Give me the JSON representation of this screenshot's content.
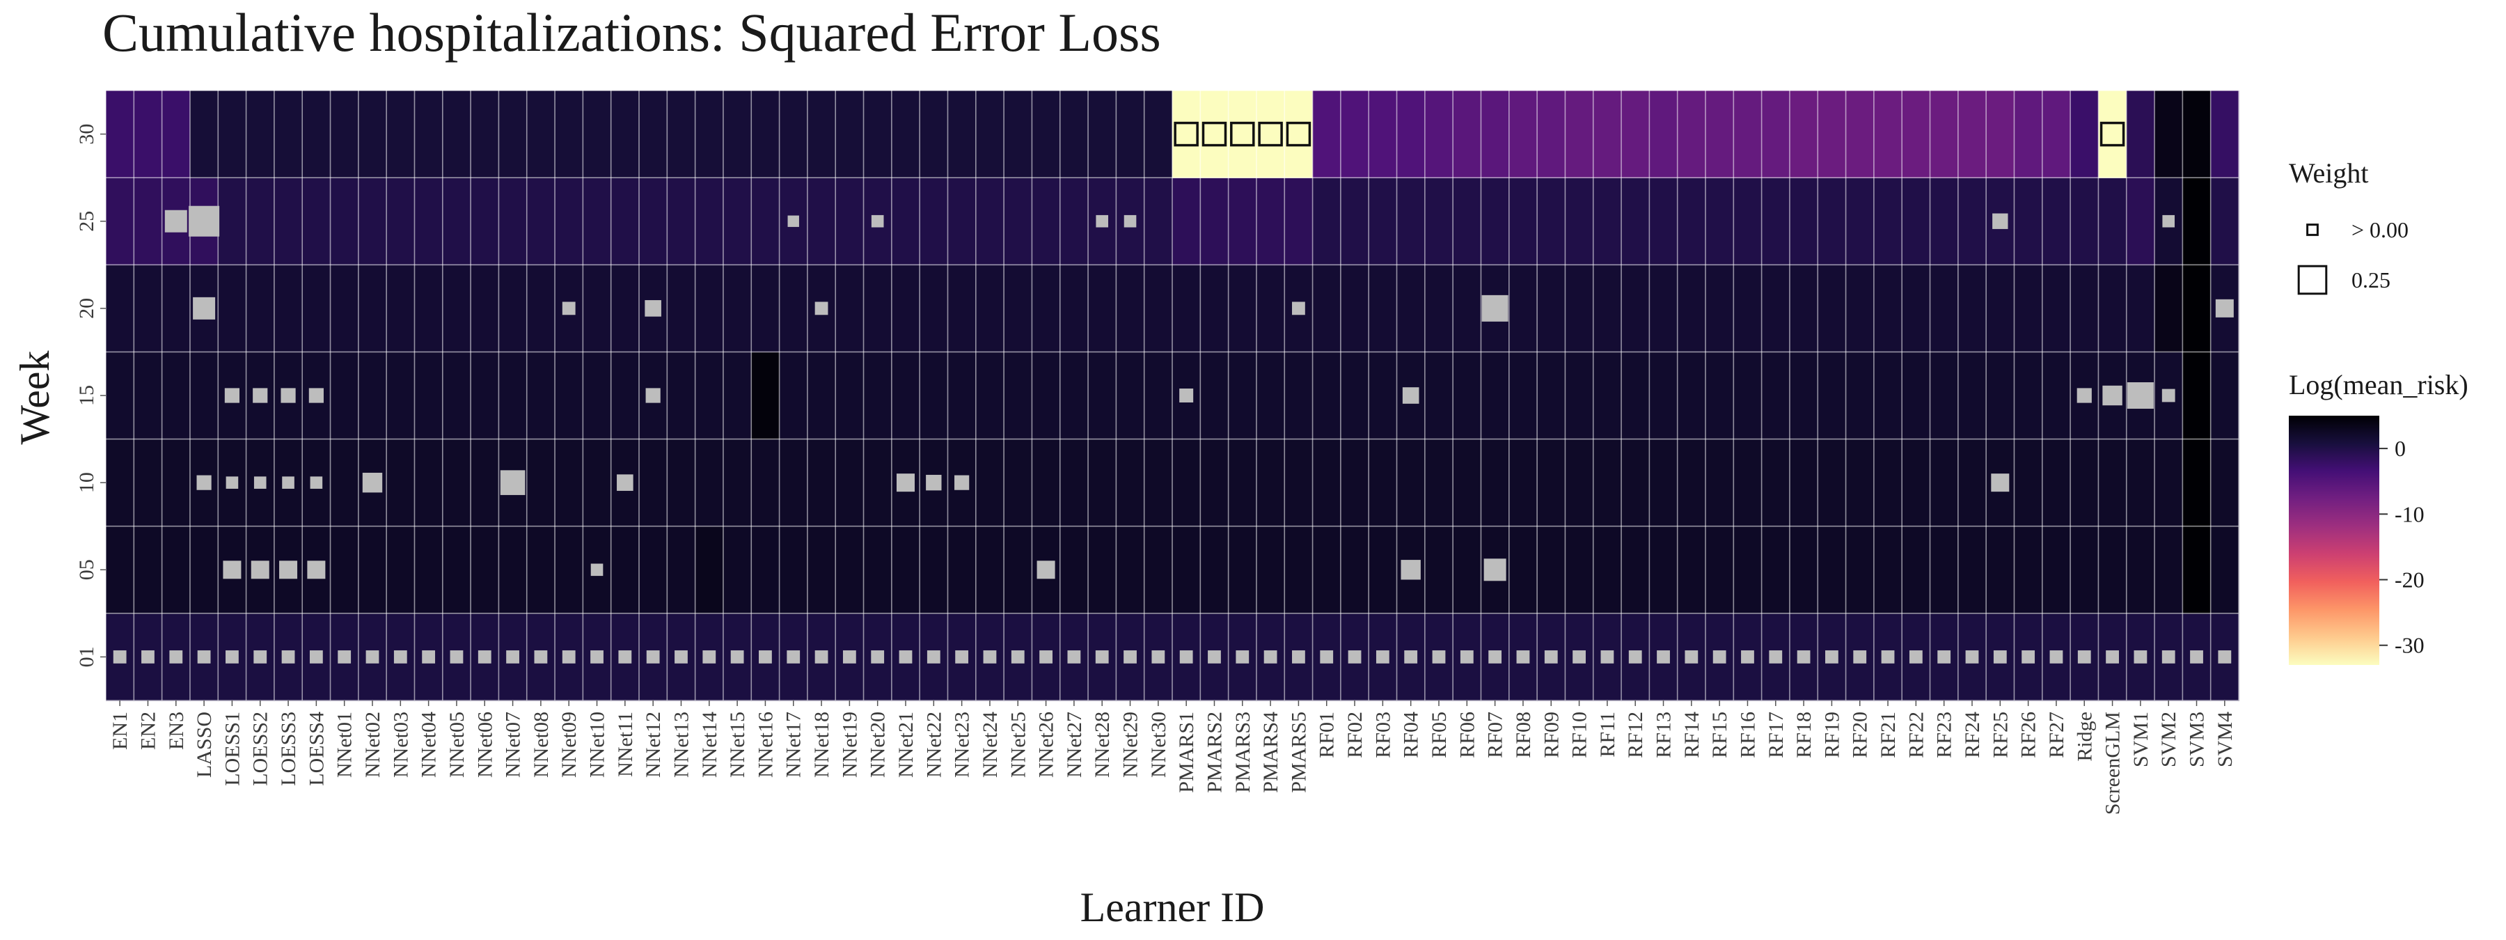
{
  "chart_data": {
    "type": "heatmap",
    "title": "Cumulative hospitalizations: Squared Error Loss",
    "xlabel": "Learner ID",
    "ylabel": "Week",
    "weeks": [
      "01",
      "05",
      "10",
      "15",
      "20",
      "25",
      "30"
    ],
    "learners": [
      "EN1",
      "EN2",
      "EN3",
      "LASSO",
      "LOESS1",
      "LOESS2",
      "LOESS3",
      "LOESS4",
      "NNet01",
      "NNet02",
      "NNet03",
      "NNet04",
      "NNet05",
      "NNet06",
      "NNet07",
      "NNet08",
      "NNet09",
      "NNet10",
      "NNet11",
      "NNet12",
      "NNet13",
      "NNet14",
      "NNet15",
      "NNet16",
      "NNet17",
      "NNet18",
      "NNet19",
      "NNet20",
      "NNet21",
      "NNet22",
      "NNet23",
      "NNet24",
      "NNet25",
      "NNet26",
      "NNet27",
      "NNet28",
      "NNet29",
      "NNet30",
      "PMARS1",
      "PMARS2",
      "PMARS3",
      "PMARS4",
      "PMARS5",
      "RF01",
      "RF02",
      "RF03",
      "RF04",
      "RF05",
      "RF06",
      "RF07",
      "RF08",
      "RF09",
      "RF10",
      "RF11",
      "RF12",
      "RF13",
      "RF14",
      "RF15",
      "RF16",
      "RF17",
      "RF18",
      "RF19",
      "RF20",
      "RF21",
      "RF22",
      "RF23",
      "RF24",
      "RF25",
      "RF26",
      "RF27",
      "Ridge",
      "ScreenGLM",
      "SVM1",
      "SVM2",
      "SVM3",
      "SVM4"
    ],
    "fill_legend": {
      "title": "Log(mean_risk)",
      "ticks": [
        0,
        -10,
        -20,
        -30
      ],
      "range": [
        -33,
        5
      ],
      "colors": [
        "#fcfdbf",
        "#feca8d",
        "#fd9668",
        "#f1605d",
        "#cd4071",
        "#9e2f7f",
        "#721f81",
        "#440f76",
        "#180f3d",
        "#000004"
      ]
    },
    "size_legend": {
      "title": "Weight",
      "labels": [
        "> 0.00",
        "0.25"
      ],
      "values": [
        0.02,
        0.25
      ]
    },
    "mean_risk_log": {
      "default_by_week": {
        "01": 0.5,
        "05": 2.5,
        "10": 2.3,
        "15": 2.0,
        "20": 1.5,
        "25": 0.0,
        "30": 1.2
      },
      "overrides": [
        {
          "learner": "EN1",
          "week": "30",
          "value": -2.5
        },
        {
          "learner": "EN2",
          "week": "30",
          "value": -2.5
        },
        {
          "learner": "EN3",
          "week": "30",
          "value": -2.5
        },
        {
          "learner": "EN1",
          "week": "25",
          "value": -1.5
        },
        {
          "learner": "EN2",
          "week": "25",
          "value": -1.5
        },
        {
          "learner": "EN3",
          "week": "25",
          "value": -1.5
        },
        {
          "learner": "LASSO",
          "week": "25",
          "value": -1.5
        },
        {
          "learner": "NNet16",
          "week": "15",
          "value": 4.5
        },
        {
          "learner": "NNet14",
          "week": "05",
          "value": 3.2
        },
        {
          "learner": "PMARS1",
          "week": "30",
          "value": -33
        },
        {
          "learner": "PMARS2",
          "week": "30",
          "value": -33
        },
        {
          "learner": "PMARS3",
          "week": "30",
          "value": -33
        },
        {
          "learner": "PMARS4",
          "week": "30",
          "value": -33
        },
        {
          "learner": "PMARS5",
          "week": "30",
          "value": -33
        },
        {
          "learner": "PMARS1",
          "week": "25",
          "value": -1.2
        },
        {
          "learner": "PMARS2",
          "week": "25",
          "value": -1.2
        },
        {
          "learner": "PMARS3",
          "week": "25",
          "value": -1.2
        },
        {
          "learner": "PMARS4",
          "week": "25",
          "value": -1.2
        },
        {
          "learner": "PMARS5",
          "week": "25",
          "value": -1.2
        },
        {
          "learner": "RF01",
          "week": "30",
          "value": -4.5
        },
        {
          "learner": "RF02",
          "week": "30",
          "value": -4.5
        },
        {
          "learner": "RF03",
          "week": "30",
          "value": -4.5
        },
        {
          "learner": "RF04",
          "week": "30",
          "value": -4.5
        },
        {
          "learner": "RF05",
          "week": "30",
          "value": -5.0
        },
        {
          "learner": "RF06",
          "week": "30",
          "value": -5.5
        },
        {
          "learner": "RF07",
          "week": "30",
          "value": -5.5
        },
        {
          "learner": "RF08",
          "week": "30",
          "value": -6.0
        },
        {
          "learner": "RF09",
          "week": "30",
          "value": -6.0
        },
        {
          "learner": "RF10",
          "week": "30",
          "value": -6.5
        },
        {
          "learner": "RF11",
          "week": "30",
          "value": -6.5
        },
        {
          "learner": "RF12",
          "week": "30",
          "value": -6.5
        },
        {
          "learner": "RF13",
          "week": "30",
          "value": -6.0
        },
        {
          "learner": "RF14",
          "week": "30",
          "value": -6.5
        },
        {
          "learner": "RF15",
          "week": "30",
          "value": -6.5
        },
        {
          "learner": "RF16",
          "week": "30",
          "value": -6.5
        },
        {
          "learner": "RF17",
          "week": "30",
          "value": -6.5
        },
        {
          "learner": "RF18",
          "week": "30",
          "value": -7.0
        },
        {
          "learner": "RF19",
          "week": "30",
          "value": -7.0
        },
        {
          "learner": "RF20",
          "week": "30",
          "value": -7.0
        },
        {
          "learner": "RF21",
          "week": "30",
          "value": -7.0
        },
        {
          "learner": "RF22",
          "week": "30",
          "value": -7.0
        },
        {
          "learner": "RF23",
          "week": "30",
          "value": -7.0
        },
        {
          "learner": "RF24",
          "week": "30",
          "value": -7.0
        },
        {
          "learner": "RF25",
          "week": "30",
          "value": -7.0
        },
        {
          "learner": "RF26",
          "week": "30",
          "value": -6.0
        },
        {
          "learner": "RF27",
          "week": "30",
          "value": -6.0
        },
        {
          "learner": "Ridge",
          "week": "30",
          "value": -2.5
        },
        {
          "learner": "ScreenGLM",
          "week": "30",
          "value": -33
        },
        {
          "learner": "SVM1",
          "week": "30",
          "value": -1.0
        },
        {
          "learner": "SVM2",
          "week": "30",
          "value": 3.5
        },
        {
          "learner": "SVM3",
          "week": "30",
          "value": 4.5
        },
        {
          "learner": "SVM4",
          "week": "30",
          "value": -2.0
        },
        {
          "learner": "SVM1",
          "week": "25",
          "value": -1.0
        },
        {
          "learner": "SVM2",
          "week": "25",
          "value": 1.5
        },
        {
          "learner": "SVM3",
          "week": "25",
          "value": 5.0
        },
        {
          "learner": "SVM3",
          "week": "20",
          "value": 5.0
        },
        {
          "learner": "SVM3",
          "week": "15",
          "value": 5.0
        },
        {
          "learner": "SVM3",
          "week": "10",
          "value": 5.0
        },
        {
          "learner": "SVM3",
          "week": "05",
          "value": 5.0
        },
        {
          "learner": "SVM2",
          "week": "20",
          "value": 3.5
        }
      ]
    },
    "weights": [
      {
        "learner": "EN3",
        "week": "25",
        "value": 0.15
      },
      {
        "learner": "LASSO",
        "week": "25",
        "value": 0.25
      },
      {
        "learner": "NNet17",
        "week": "25",
        "value": 0.02
      },
      {
        "learner": "NNet20",
        "week": "25",
        "value": 0.03
      },
      {
        "learner": "NNet28",
        "week": "25",
        "value": 0.03
      },
      {
        "learner": "NNet29",
        "week": "25",
        "value": 0.03
      },
      {
        "learner": "RF25",
        "week": "25",
        "value": 0.07
      },
      {
        "learner": "SVM2",
        "week": "25",
        "value": 0.03
      },
      {
        "learner": "LASSO",
        "week": "20",
        "value": 0.15
      },
      {
        "learner": "NNet09",
        "week": "20",
        "value": 0.04
      },
      {
        "learner": "NNet12",
        "week": "20",
        "value": 0.08
      },
      {
        "learner": "NNet18",
        "week": "20",
        "value": 0.04
      },
      {
        "learner": "PMARS5",
        "week": "20",
        "value": 0.04
      },
      {
        "learner": "RF07",
        "week": "20",
        "value": 0.2
      },
      {
        "learner": "SVM4",
        "week": "20",
        "value": 0.1
      },
      {
        "learner": "LOESS1",
        "week": "15",
        "value": 0.06
      },
      {
        "learner": "LOESS2",
        "week": "15",
        "value": 0.06
      },
      {
        "learner": "LOESS3",
        "week": "15",
        "value": 0.06
      },
      {
        "learner": "LOESS4",
        "week": "15",
        "value": 0.06
      },
      {
        "learner": "NNet12",
        "week": "15",
        "value": 0.06
      },
      {
        "learner": "PMARS1",
        "week": "15",
        "value": 0.05
      },
      {
        "learner": "RF04",
        "week": "15",
        "value": 0.08
      },
      {
        "learner": "Ridge",
        "week": "15",
        "value": 0.06
      },
      {
        "learner": "ScreenGLM",
        "week": "15",
        "value": 0.12
      },
      {
        "learner": "SVM1",
        "week": "15",
        "value": 0.2
      },
      {
        "learner": "SVM2",
        "week": "15",
        "value": 0.04
      },
      {
        "learner": "LASSO",
        "week": "10",
        "value": 0.06
      },
      {
        "learner": "LOESS1",
        "week": "10",
        "value": 0.03
      },
      {
        "learner": "LOESS2",
        "week": "10",
        "value": 0.03
      },
      {
        "learner": "LOESS3",
        "week": "10",
        "value": 0.03
      },
      {
        "learner": "LOESS4",
        "week": "10",
        "value": 0.03
      },
      {
        "learner": "NNet02",
        "week": "10",
        "value": 0.12
      },
      {
        "learner": "NNet07",
        "week": "10",
        "value": 0.18
      },
      {
        "learner": "NNet11",
        "week": "10",
        "value": 0.08
      },
      {
        "learner": "NNet21",
        "week": "10",
        "value": 0.1
      },
      {
        "learner": "NNet22",
        "week": "10",
        "value": 0.07
      },
      {
        "learner": "NNet23",
        "week": "10",
        "value": 0.06
      },
      {
        "learner": "RF25",
        "week": "10",
        "value": 0.1
      },
      {
        "learner": "LOESS1",
        "week": "05",
        "value": 0.1
      },
      {
        "learner": "LOESS2",
        "week": "05",
        "value": 0.1
      },
      {
        "learner": "LOESS3",
        "week": "05",
        "value": 0.1
      },
      {
        "learner": "LOESS4",
        "week": "05",
        "value": 0.1
      },
      {
        "learner": "NNet10",
        "week": "05",
        "value": 0.03
      },
      {
        "learner": "NNet26",
        "week": "05",
        "value": 0.1
      },
      {
        "learner": "RF04",
        "week": "05",
        "value": 0.12
      },
      {
        "learner": "RF07",
        "week": "05",
        "value": 0.15
      },
      {
        "learner": "PMARS1",
        "week": "30",
        "value": 0.15,
        "outline": true
      },
      {
        "learner": "PMARS2",
        "week": "30",
        "value": 0.15,
        "outline": true
      },
      {
        "learner": "PMARS3",
        "week": "30",
        "value": 0.15,
        "outline": true
      },
      {
        "learner": "PMARS4",
        "week": "30",
        "value": 0.15,
        "outline": true
      },
      {
        "learner": "PMARS5",
        "week": "30",
        "value": 0.15,
        "outline": true
      },
      {
        "learner": "ScreenGLM",
        "week": "30",
        "value": 0.15,
        "outline": true
      }
    ],
    "week01_weight_all": 0.04
  }
}
